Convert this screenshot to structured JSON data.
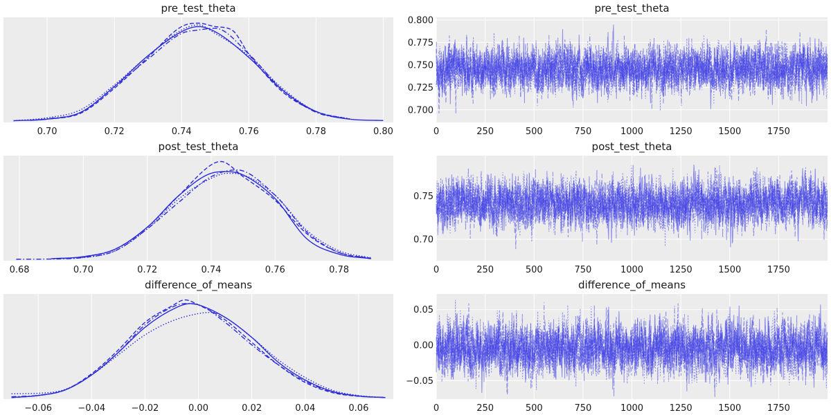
{
  "chart_data": [
    {
      "type": "line",
      "plot": "kde",
      "title": "pre_test_theta",
      "xlim": [
        0.687,
        0.803
      ],
      "xticks": [
        0.7,
        0.72,
        0.74,
        0.76,
        0.78,
        0.8
      ],
      "xtick_labels": [
        "0.70",
        "0.72",
        "0.74",
        "0.76",
        "0.78",
        "0.80"
      ],
      "yticks_visible": false,
      "grid": true,
      "series": [
        {
          "style": "solid",
          "x": [
            0.69,
            0.7,
            0.71,
            0.72,
            0.73,
            0.74,
            0.745,
            0.75,
            0.76,
            0.77,
            0.78,
            0.79,
            0.8
          ],
          "y": [
            0.1,
            1.0,
            5.0,
            20.0,
            38.0,
            52.0,
            55.0,
            52.0,
            37.0,
            18.0,
            5.5,
            1.0,
            0.2
          ]
        },
        {
          "style": "dashed",
          "x": [
            0.695,
            0.7,
            0.71,
            0.72,
            0.73,
            0.74,
            0.745,
            0.75,
            0.755,
            0.76,
            0.77,
            0.78,
            0.79
          ],
          "y": [
            0.3,
            1.0,
            4.5,
            19.0,
            37.0,
            55.0,
            57.0,
            55.0,
            53.0,
            39.0,
            17.0,
            5.5,
            1.0
          ]
        },
        {
          "style": "dotted",
          "x": [
            0.69,
            0.7,
            0.71,
            0.72,
            0.73,
            0.74,
            0.745,
            0.75,
            0.76,
            0.77,
            0.78,
            0.79
          ],
          "y": [
            0.1,
            1.8,
            6.5,
            21.0,
            38.0,
            53.0,
            56.0,
            51.0,
            38.0,
            19.0,
            5.5,
            1.2
          ]
        },
        {
          "style": "dashdot",
          "x": [
            0.695,
            0.7,
            0.71,
            0.72,
            0.73,
            0.74,
            0.745,
            0.75,
            0.76,
            0.77,
            0.78,
            0.79
          ],
          "y": [
            0.4,
            1.2,
            5.0,
            20.0,
            36.0,
            51.0,
            53.0,
            54.0,
            39.0,
            18.0,
            5.0,
            1.0
          ]
        }
      ]
    },
    {
      "type": "line",
      "plot": "trace",
      "title": "pre_test_theta",
      "xlim": [
        0,
        2000
      ],
      "ylim": [
        0.686,
        0.803
      ],
      "xticks": [
        0,
        250,
        500,
        750,
        1000,
        1250,
        1500,
        1750
      ],
      "xtick_labels": [
        "0",
        "250",
        "500",
        "750",
        "1000",
        "1250",
        "1500",
        "1750"
      ],
      "yticks": [
        0.7,
        0.725,
        0.75,
        0.775,
        0.8
      ],
      "ytick_labels": [
        "0.700",
        "0.725",
        "0.750",
        "0.775",
        "0.800"
      ],
      "grid": true,
      "draws": 2000,
      "chains": 4,
      "center": 0.745,
      "spread": 0.013,
      "clip": [
        0.689,
        0.8
      ],
      "seed": 11
    },
    {
      "type": "line",
      "plot": "kde",
      "title": "post_test_theta",
      "xlim": [
        0.675,
        0.797
      ],
      "xticks": [
        0.68,
        0.7,
        0.72,
        0.74,
        0.76,
        0.78
      ],
      "xtick_labels": [
        "0.68",
        "0.70",
        "0.72",
        "0.74",
        "0.76",
        "0.78"
      ],
      "yticks_visible": false,
      "grid": true,
      "series": [
        {
          "style": "solid",
          "x": [
            0.69,
            0.7,
            0.71,
            0.72,
            0.73,
            0.74,
            0.745,
            0.75,
            0.76,
            0.77,
            0.78,
            0.79
          ],
          "y": [
            0.3,
            1.5,
            6.0,
            19.0,
            38.0,
            51.0,
            52.0,
            50.0,
            36.0,
            12.0,
            3.0,
            0.3
          ]
        },
        {
          "style": "dashed",
          "x": [
            0.695,
            0.7,
            0.71,
            0.72,
            0.73,
            0.74,
            0.743,
            0.75,
            0.76,
            0.77,
            0.78,
            0.79
          ],
          "y": [
            0.5,
            1.5,
            6.0,
            19.0,
            38.0,
            56.0,
            58.0,
            49.0,
            35.0,
            15.0,
            4.0,
            0.5
          ]
        },
        {
          "style": "dotted",
          "x": [
            0.69,
            0.7,
            0.71,
            0.72,
            0.73,
            0.74,
            0.745,
            0.75,
            0.76,
            0.77,
            0.78,
            0.79
          ],
          "y": [
            0.3,
            1.0,
            5.0,
            18.0,
            36.0,
            48.0,
            51.0,
            50.0,
            38.0,
            17.0,
            5.0,
            0.8
          ]
        },
        {
          "style": "dashdot",
          "x": [
            0.679,
            0.69,
            0.7,
            0.71,
            0.72,
            0.73,
            0.74,
            0.748,
            0.76,
            0.77,
            0.78,
            0.79
          ],
          "y": [
            0.0,
            0.1,
            1.0,
            5.0,
            18.0,
            34.0,
            49.0,
            53.0,
            38.0,
            16.0,
            4.0,
            0.5
          ]
        }
      ]
    },
    {
      "type": "line",
      "plot": "trace",
      "title": "post_test_theta",
      "xlim": [
        0,
        2000
      ],
      "ylim": [
        0.675,
        0.797
      ],
      "xticks": [
        0,
        250,
        500,
        750,
        1000,
        1250,
        1500,
        1750
      ],
      "xtick_labels": [
        "0",
        "250",
        "500",
        "750",
        "1000",
        "1250",
        "1500",
        "1750"
      ],
      "yticks": [
        0.7,
        0.75
      ],
      "ytick_labels": [
        "0.70",
        "0.75"
      ],
      "grid": true,
      "draws": 2000,
      "chains": 4,
      "center": 0.742,
      "spread": 0.014,
      "clip": [
        0.68,
        0.795
      ],
      "seed": 23
    },
    {
      "type": "line",
      "plot": "kde",
      "title": "difference_of_means",
      "xlim": [
        -0.073,
        0.073
      ],
      "xticks": [
        -0.06,
        -0.04,
        -0.02,
        0.0,
        0.02,
        0.04,
        0.06
      ],
      "xtick_labels": [
        "−0.06",
        "−0.04",
        "−0.02",
        "0.00",
        "0.02",
        "0.04",
        "0.06"
      ],
      "yticks_visible": false,
      "grid": true,
      "series": [
        {
          "style": "solid",
          "x": [
            -0.07,
            -0.06,
            -0.05,
            -0.04,
            -0.03,
            -0.02,
            -0.01,
            -0.003,
            0.0,
            0.01,
            0.02,
            0.03,
            0.04,
            0.05,
            0.06,
            0.07
          ],
          "y": [
            0.0,
            0.8,
            3.0,
            9.0,
            18.0,
            28.0,
            35.0,
            37.5,
            37.0,
            32.0,
            24.0,
            14.0,
            7.0,
            2.5,
            0.6,
            0.0
          ]
        },
        {
          "style": "dashed",
          "x": [
            -0.07,
            -0.06,
            -0.05,
            -0.04,
            -0.03,
            -0.02,
            -0.01,
            -0.005,
            0.0,
            0.01,
            0.02,
            0.03,
            0.04,
            0.05,
            0.06,
            0.07
          ],
          "y": [
            0.0,
            0.8,
            3.0,
            9.5,
            19.0,
            30.0,
            36.5,
            39.0,
            37.0,
            31.0,
            22.0,
            13.0,
            6.0,
            2.0,
            0.5,
            0.0
          ]
        },
        {
          "style": "dotted",
          "x": [
            -0.07,
            -0.06,
            -0.05,
            -0.04,
            -0.03,
            -0.02,
            -0.01,
            0.0,
            0.005,
            0.01,
            0.02,
            0.03,
            0.04,
            0.05,
            0.06,
            0.07
          ],
          "y": [
            1.5,
            1.7,
            3.2,
            9.0,
            17.0,
            25.0,
            30.5,
            33.5,
            34.0,
            32.0,
            24.0,
            15.0,
            8.0,
            3.0,
            0.8,
            0.0
          ]
        },
        {
          "style": "dashdot",
          "x": [
            -0.07,
            -0.06,
            -0.05,
            -0.04,
            -0.03,
            -0.02,
            -0.01,
            -0.005,
            0.0,
            0.01,
            0.02,
            0.03,
            0.04,
            0.05,
            0.06,
            0.07
          ],
          "y": [
            0.3,
            0.9,
            3.0,
            9.0,
            18.0,
            29.0,
            36.0,
            37.5,
            37.0,
            30.0,
            21.0,
            13.0,
            6.5,
            2.3,
            0.6,
            0.0
          ]
        }
      ]
    },
    {
      "type": "line",
      "plot": "trace",
      "title": "difference_of_means",
      "xlim": [
        0,
        2000
      ],
      "ylim": [
        -0.076,
        0.072
      ],
      "xticks": [
        0,
        250,
        500,
        750,
        1000,
        1250,
        1500,
        1750
      ],
      "xtick_labels": [
        "0",
        "250",
        "500",
        "750",
        "1000",
        "1250",
        "1500",
        "1750"
      ],
      "yticks": [
        -0.05,
        0.0,
        0.05
      ],
      "ytick_labels": [
        "−0.05",
        "0.00",
        "0.05"
      ],
      "grid": true,
      "draws": 2000,
      "chains": 4,
      "center": -0.004,
      "spread": 0.019,
      "clip": [
        -0.073,
        0.07
      ],
      "seed": 37
    }
  ]
}
